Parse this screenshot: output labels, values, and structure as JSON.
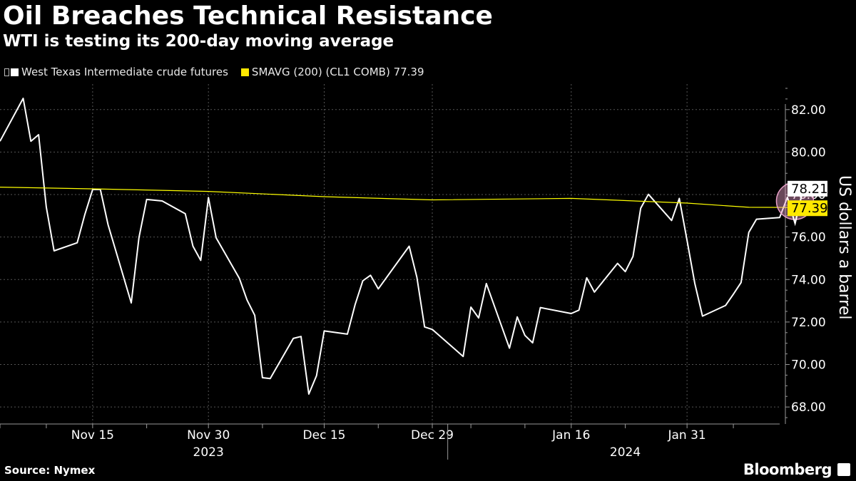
{
  "header": {
    "title": "Oil Breaches Technical Resistance",
    "subtitle": "WTI is testing its 200-day moving average"
  },
  "footer": {
    "source": "Source: Nymex",
    "brand": "Bloomberg"
  },
  "chart_data": {
    "type": "line",
    "title": "Oil Breaches Technical Resistance",
    "subtitle": "WTI is testing its 200-day moving average",
    "ylabel": "US dollars a barrel",
    "ylim": [
      67.2,
      83.2
    ],
    "yticks": [
      68,
      70,
      72,
      74,
      76,
      78,
      80,
      82
    ],
    "ytick_labels": [
      "68.00",
      "70.00",
      "72.00",
      "74.00",
      "76.00",
      "78.00",
      "80.00",
      "82.00"
    ],
    "xlim": [
      "2023-11-03",
      "2024-02-12"
    ],
    "xticks": [
      {
        "date": "2023-11-15",
        "label": "Nov 15"
      },
      {
        "date": "2023-11-30",
        "label": "Nov 30"
      },
      {
        "date": "2023-12-15",
        "label": "Dec 15"
      },
      {
        "date": "2023-12-29",
        "label": "Dec 29"
      },
      {
        "date": "2024-01-16",
        "label": "Jan 16"
      },
      {
        "date": "2024-01-31",
        "label": "Jan 31"
      }
    ],
    "minor_ticks": [
      "2023-11-03",
      "2023-11-09",
      "2023-11-22",
      "2023-12-07",
      "2023-12-22",
      "2024-01-03",
      "2024-01-10",
      "2024-01-23",
      "2024-02-06"
    ],
    "years": [
      {
        "label": "2023",
        "date": "2023-11-30"
      },
      {
        "label": "2024",
        "date": "2024-01-23"
      }
    ],
    "year_divider": "2023-12-31",
    "grid": true,
    "legend_position": "top-left",
    "series": [
      {
        "name": "West Texas Intermediate crude futures",
        "color": "#ffffff",
        "points": [
          [
            "2023-11-03",
            80.51
          ],
          [
            "2023-11-06",
            82.53
          ],
          [
            "2023-11-07",
            80.51
          ],
          [
            "2023-11-08",
            80.82
          ],
          [
            "2023-11-09",
            77.41
          ],
          [
            "2023-11-10",
            75.35
          ],
          [
            "2023-11-13",
            75.73
          ],
          [
            "2023-11-14",
            77.07
          ],
          [
            "2023-11-15",
            78.24
          ],
          [
            "2023-11-16",
            78.24
          ],
          [
            "2023-11-17",
            76.58
          ],
          [
            "2023-11-20",
            72.9
          ],
          [
            "2023-11-21",
            75.97
          ],
          [
            "2023-11-22",
            77.77
          ],
          [
            "2023-11-24",
            77.7
          ],
          [
            "2023-11-27",
            77.1
          ],
          [
            "2023-11-28",
            75.57
          ],
          [
            "2023-11-29",
            74.9
          ],
          [
            "2023-11-30",
            77.86
          ],
          [
            "2023-12-01",
            75.96
          ],
          [
            "2023-12-04",
            74.06
          ],
          [
            "2023-12-05",
            73.04
          ],
          [
            "2023-12-06",
            72.32
          ],
          [
            "2023-12-07",
            69.38
          ],
          [
            "2023-12-08",
            69.34
          ],
          [
            "2023-12-11",
            71.23
          ],
          [
            "2023-12-12",
            71.32
          ],
          [
            "2023-12-13",
            68.61
          ],
          [
            "2023-12-14",
            69.47
          ],
          [
            "2023-12-15",
            71.58
          ],
          [
            "2023-12-18",
            71.43
          ],
          [
            "2023-12-19",
            72.82
          ],
          [
            "2023-12-20",
            73.94
          ],
          [
            "2023-12-21",
            74.2
          ],
          [
            "2023-12-22",
            73.56
          ],
          [
            "2023-12-26",
            75.57
          ],
          [
            "2023-12-27",
            74.11
          ],
          [
            "2023-12-28",
            71.77
          ],
          [
            "2023-12-29",
            71.65
          ],
          [
            "2024-01-02",
            70.38
          ],
          [
            "2024-01-03",
            72.7
          ],
          [
            "2024-01-04",
            72.19
          ],
          [
            "2024-01-05",
            73.81
          ],
          [
            "2024-01-08",
            70.77
          ],
          [
            "2024-01-09",
            72.24
          ],
          [
            "2024-01-10",
            71.37
          ],
          [
            "2024-01-11",
            71.02
          ],
          [
            "2024-01-12",
            72.68
          ],
          [
            "2024-01-16",
            72.4
          ],
          [
            "2024-01-17",
            72.56
          ],
          [
            "2024-01-18",
            74.08
          ],
          [
            "2024-01-19",
            73.41
          ],
          [
            "2024-01-22",
            74.76
          ],
          [
            "2024-01-23",
            74.37
          ],
          [
            "2024-01-24",
            75.09
          ],
          [
            "2024-01-25",
            77.36
          ],
          [
            "2024-01-26",
            78.01
          ],
          [
            "2024-01-29",
            76.78
          ],
          [
            "2024-01-30",
            77.82
          ],
          [
            "2024-01-31",
            75.85
          ],
          [
            "2024-02-01",
            73.82
          ],
          [
            "2024-02-02",
            72.28
          ],
          [
            "2024-02-05",
            72.78
          ],
          [
            "2024-02-06",
            73.31
          ],
          [
            "2024-02-07",
            73.86
          ],
          [
            "2024-02-08",
            76.22
          ],
          [
            "2024-02-09",
            76.84
          ],
          [
            "2024-02-12",
            76.92
          ],
          [
            "2024-02-13",
            77.87
          ],
          [
            "2024-02-14",
            76.64
          ],
          [
            "2024-02-15",
            78.21
          ]
        ],
        "last_label": "78.21"
      },
      {
        "name": "SMAVG (200) (CL1 COMB) 77.39",
        "color": "#ffff00",
        "points": [
          [
            "2023-11-03",
            78.35
          ],
          [
            "2023-11-15",
            78.27
          ],
          [
            "2023-11-30",
            78.15
          ],
          [
            "2023-12-15",
            77.9
          ],
          [
            "2023-12-29",
            77.75
          ],
          [
            "2024-01-16",
            77.82
          ],
          [
            "2024-01-31",
            77.6
          ],
          [
            "2024-02-08",
            77.4
          ],
          [
            "2024-02-15",
            77.39
          ]
        ],
        "last_label": "77.39"
      }
    ],
    "annotation": {
      "type": "circle",
      "date": "2024-02-15",
      "value": 77.8,
      "color": "#e8a0c8"
    }
  }
}
